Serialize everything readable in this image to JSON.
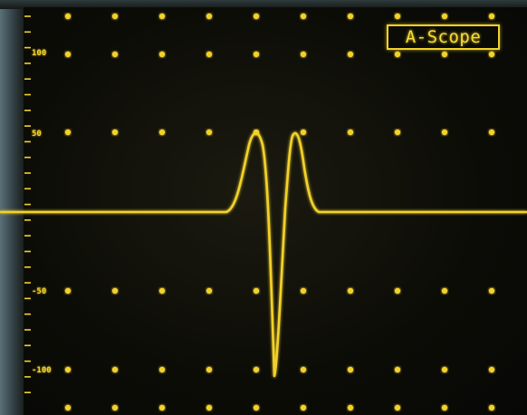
{
  "mode_label": "A-Scope",
  "y_axis": {
    "ticks": [
      {
        "value": 100,
        "label": "100"
      },
      {
        "value": 50,
        "label": "50"
      },
      {
        "value": -50,
        "label": "-50"
      },
      {
        "value": -100,
        "label": "-100"
      }
    ]
  },
  "trace_color": "#f2d22a",
  "background_color": "#0a0b08"
}
